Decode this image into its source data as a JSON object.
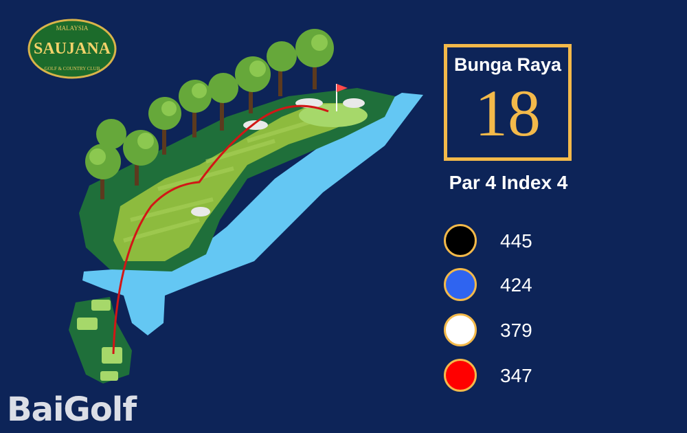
{
  "logo": {
    "top_text": "MALAYSIA",
    "name": "SAUJANA",
    "bottom_text": "GOLF & COUNTRY CLUB"
  },
  "hole": {
    "course_name": "Bunga Raya",
    "number": "18",
    "par_index": "Par 4  Index 4"
  },
  "tees": [
    {
      "color": "#000000",
      "yards": "445"
    },
    {
      "color": "#2f64f0",
      "yards": "424"
    },
    {
      "color": "#ffffff",
      "yards": "379"
    },
    {
      "color": "#ff0000",
      "yards": "347"
    }
  ],
  "watermark": "BaiGolf",
  "colors": {
    "background": "#0d2458",
    "accent": "#f3b94a",
    "water": "#64c7f3",
    "rough": "#1f6f3a",
    "fairway": "#8dbb3e"
  }
}
